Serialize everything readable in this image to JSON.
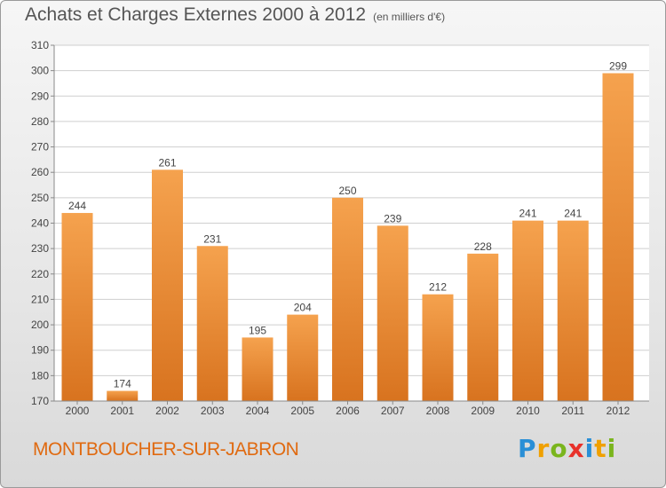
{
  "header": {
    "title": "Achats et Charges Externes 2000 à 2012",
    "subtitle": "(en milliers d'€)"
  },
  "footer": {
    "place": "MONTBOUCHER-SUR-JABRON",
    "logo": {
      "letters": [
        "P",
        "r",
        "o",
        "x",
        "i",
        "t",
        "i"
      ],
      "colors": [
        "#2a8fd6",
        "#f0a000",
        "#7ab51d",
        "#e8312a",
        "#2a8fd6",
        "#f0a000",
        "#7ab51d"
      ]
    }
  },
  "colors": {
    "bar_top": "#f5a24e",
    "bar_bottom": "#d8731f",
    "grid": "#cfcfcf",
    "axis": "#8a8a8a",
    "text": "#444444",
    "accent": "#e06a10"
  },
  "chart_data": {
    "type": "bar",
    "title": "Achats et Charges Externes 2000 à 2012",
    "subtitle": "(en milliers d'€)",
    "categories": [
      "2000",
      "2001",
      "2002",
      "2003",
      "2004",
      "2005",
      "2006",
      "2007",
      "2008",
      "2009",
      "2010",
      "2011",
      "2012"
    ],
    "values": [
      244,
      174,
      261,
      231,
      195,
      204,
      250,
      239,
      212,
      228,
      241,
      241,
      299
    ],
    "ylim": [
      170,
      310
    ],
    "yticks": [
      170,
      180,
      190,
      200,
      210,
      220,
      230,
      240,
      250,
      260,
      270,
      280,
      290,
      300,
      310
    ],
    "grid": true,
    "data_labels": true
  }
}
